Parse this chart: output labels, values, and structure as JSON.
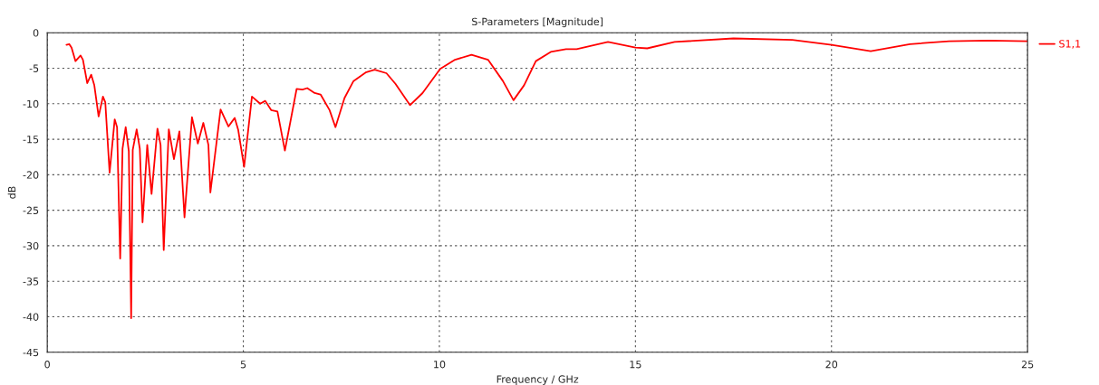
{
  "chart_data": {
    "type": "line",
    "title": "S-Parameters [Magnitude]",
    "xlabel": "Frequency / GHz",
    "ylabel": "dB",
    "xlim": [
      0,
      25
    ],
    "ylim": [
      -45,
      0
    ],
    "xticks": [
      0,
      5,
      10,
      15,
      20,
      25
    ],
    "yticks": [
      0,
      -5,
      -10,
      -15,
      -20,
      -25,
      -30,
      -35,
      -40,
      -45
    ],
    "grid": true,
    "legend": "top right",
    "line_style": "solid",
    "series": [
      {
        "name": "S1,1",
        "color": "#ff0000",
        "x": [
          0.49,
          0.56,
          0.62,
          0.72,
          0.85,
          0.91,
          1.02,
          1.12,
          1.2,
          1.31,
          1.42,
          1.48,
          1.59,
          1.62,
          1.72,
          1.78,
          1.86,
          1.92,
          2.0,
          2.08,
          2.14,
          2.18,
          2.28,
          2.36,
          2.43,
          2.55,
          2.66,
          2.81,
          2.89,
          2.97,
          3.1,
          3.23,
          3.37,
          3.5,
          3.69,
          3.84,
          3.98,
          4.11,
          4.16,
          4.42,
          4.62,
          4.78,
          4.87,
          5.02,
          5.22,
          5.43,
          5.56,
          5.71,
          5.87,
          6.06,
          6.36,
          6.51,
          6.63,
          6.82,
          6.97,
          7.2,
          7.35,
          7.58,
          7.81,
          8.12,
          8.35,
          8.65,
          8.88,
          9.25,
          9.57,
          10.02,
          10.4,
          10.82,
          11.24,
          11.62,
          11.89,
          12.16,
          12.46,
          12.84,
          13.23,
          13.5,
          14.3,
          15.0,
          15.3,
          16.0,
          17.5,
          19.0,
          20.0,
          21.0,
          22.0,
          23.0,
          24.0,
          25.0
        ],
        "values": [
          -1.7,
          -1.6,
          -2.1,
          -4.0,
          -3.2,
          -3.8,
          -7.1,
          -5.9,
          -7.4,
          -11.8,
          -9.0,
          -9.8,
          -19.7,
          -18.0,
          -12.2,
          -13.3,
          -31.8,
          -16.3,
          -13.3,
          -16.7,
          -40.2,
          -16.5,
          -13.6,
          -16.3,
          -26.7,
          -15.8,
          -22.7,
          -13.5,
          -15.8,
          -30.6,
          -13.6,
          -17.8,
          -13.9,
          -26.0,
          -11.9,
          -15.6,
          -12.7,
          -15.8,
          -22.5,
          -10.8,
          -13.2,
          -12.0,
          -13.7,
          -18.9,
          -9.0,
          -10.0,
          -9.6,
          -10.9,
          -11.1,
          -16.6,
          -7.9,
          -8.0,
          -7.8,
          -8.5,
          -8.7,
          -10.9,
          -13.3,
          -9.2,
          -6.8,
          -5.6,
          -5.2,
          -5.7,
          -7.2,
          -10.2,
          -8.5,
          -5.1,
          -3.8,
          -3.1,
          -3.8,
          -6.8,
          -9.5,
          -7.4,
          -4.0,
          -2.7,
          -2.3,
          -2.3,
          -1.3,
          -2.1,
          -2.2,
          -1.3,
          -0.8,
          -1.0,
          -1.7,
          -2.6,
          -1.6,
          -1.2,
          -1.1,
          -1.2
        ]
      }
    ]
  }
}
